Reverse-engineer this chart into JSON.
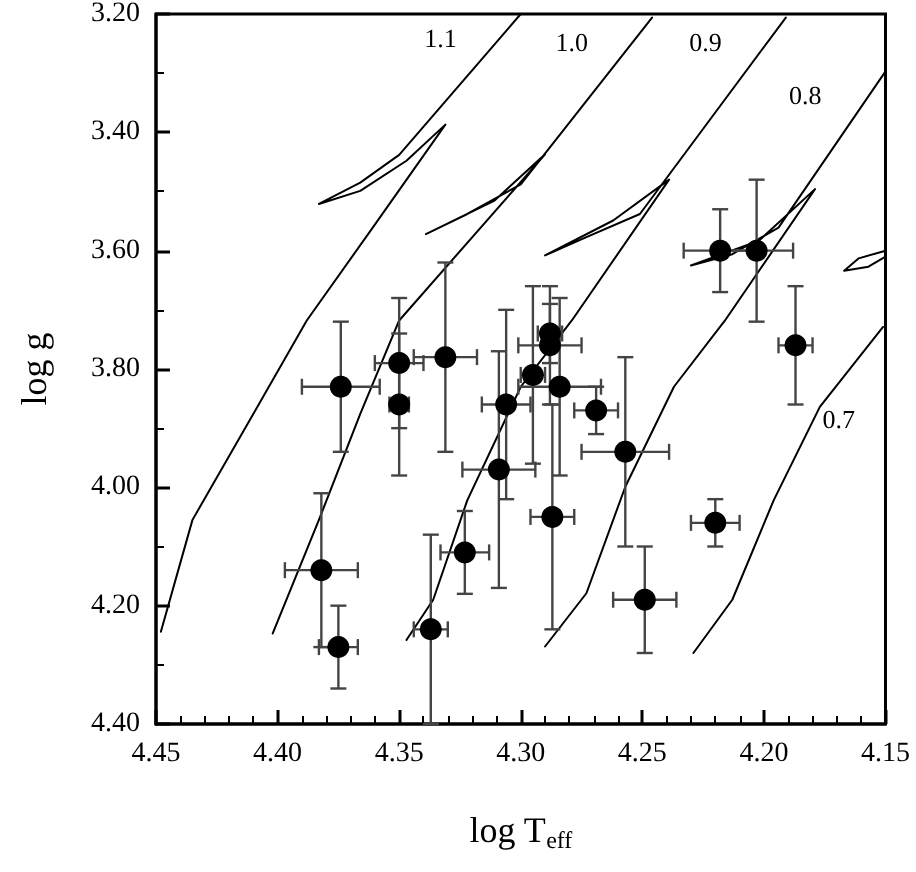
{
  "chart_data": {
    "type": "scatter",
    "xlabel": "log T$_{eff}$",
    "ylabel": "log g",
    "xlim": [
      4.45,
      4.15
    ],
    "ylim": [
      4.4,
      3.2
    ],
    "xticks": [
      4.45,
      {
        "value": 4.4,
        "label": "4.40"
      },
      4.35,
      {
        "value": 4.3,
        "label": "4.30"
      },
      4.25,
      {
        "value": 4.2,
        "label": "4.20"
      },
      4.15
    ],
    "yticks": [
      {
        "value": 3.2,
        "label": "3.20"
      },
      {
        "value": 3.4,
        "label": "3.40"
      },
      {
        "value": 3.6,
        "label": "3.60"
      },
      {
        "value": 3.8,
        "label": "3.80"
      },
      {
        "value": 4.0,
        "label": "4.00"
      },
      {
        "value": 4.2,
        "label": "4.20"
      },
      {
        "value": 4.4,
        "label": "4.40"
      }
    ],
    "series": [
      {
        "type": "line",
        "name": "1.1",
        "color": "#000000",
        "marker": "none",
        "x": [
          4.448,
          4.435,
          4.41,
          4.388,
          4.36,
          4.331,
          4.347,
          4.366,
          4.383,
          4.366,
          4.35,
          4.3
        ],
        "values": [
          4.244,
          4.055,
          3.876,
          3.718,
          3.556,
          3.387,
          3.448,
          3.499,
          3.521,
          3.485,
          3.438,
          3.2
        ]
      },
      {
        "type": "line",
        "name": "1.0",
        "color": "#000000",
        "marker": "none",
        "x": [
          4.402,
          4.383,
          4.366,
          4.35,
          4.29,
          4.311,
          4.339,
          4.322,
          4.3,
          4.246
        ],
        "values": [
          4.247,
          4.055,
          3.876,
          3.718,
          3.437,
          3.516,
          3.572,
          3.538,
          3.488,
          3.206
        ]
      },
      {
        "type": "line",
        "name": "0.9",
        "color": "#000000",
        "marker": "none",
        "x": [
          4.347,
          4.336,
          4.322,
          4.3,
          4.279,
          4.239,
          4.262,
          4.29,
          4.273,
          4.251,
          4.191
        ],
        "values": [
          4.258,
          4.19,
          4.022,
          3.83,
          3.718,
          3.48,
          3.549,
          3.608,
          3.577,
          3.538,
          3.206
        ]
      },
      {
        "type": "line",
        "name": "0.8",
        "color": "#000000",
        "marker": "none",
        "x": [
          4.29,
          4.273,
          4.257,
          4.237,
          4.216,
          4.179,
          4.202,
          4.23,
          4.213,
          4.194,
          4.15
        ],
        "values": [
          4.269,
          4.179,
          3.999,
          3.83,
          3.718,
          3.496,
          3.583,
          3.625,
          3.606,
          3.561,
          3.297
        ]
      },
      {
        "type": "line",
        "name": "0.7",
        "color": "#000000",
        "marker": "none",
        "x": [
          4.229,
          4.213,
          4.196,
          4.177,
          4.151
        ],
        "values": [
          4.28,
          4.19,
          4.022,
          3.864,
          3.729
        ]
      },
      {
        "type": "line",
        "color": "#000000",
        "marker": "none",
        "x": [
          4.15,
          4.161,
          4.167,
          4.157,
          4.15
        ],
        "values": [
          3.6,
          3.613,
          3.634,
          3.627,
          3.61
        ]
      },
      {
        "color": "#000000",
        "marker": "circle",
        "x": [
          4.218,
          4.203,
          4.187,
          4.374,
          4.35,
          4.35,
          4.331,
          4.306,
          4.309,
          4.295,
          4.288,
          4.288,
          4.284,
          4.287,
          4.269,
          4.257,
          4.249,
          4.22,
          4.382,
          4.375,
          4.337,
          4.323
        ],
        "values": [
          3.6,
          3.6,
          3.76,
          3.83,
          3.79,
          3.86,
          3.78,
          3.86,
          3.97,
          3.81,
          3.74,
          3.76,
          3.83,
          4.05,
          3.87,
          3.94,
          4.19,
          4.06,
          4.14,
          4.27,
          4.24,
          4.11
        ],
        "errors": [
          0.07,
          0.12,
          0.1,
          0.11,
          0.11,
          0.12,
          0.16,
          0.16,
          0.2,
          0.15,
          0.05,
          0.1,
          0.15,
          0.19,
          0.04,
          0.16,
          0.09,
          0.04,
          0.13,
          0.07,
          0.16,
          0.07
        ],
        "xerrors": [
          0.015,
          0.015,
          0.007,
          0.016,
          0.01,
          0.004,
          0.013,
          0.01,
          0.015,
          0.005,
          0.005,
          0.013,
          0.017,
          0.009,
          0.009,
          0.018,
          0.013,
          0.01,
          0.015,
          0.008,
          0.007,
          0.01
        ]
      }
    ]
  }
}
